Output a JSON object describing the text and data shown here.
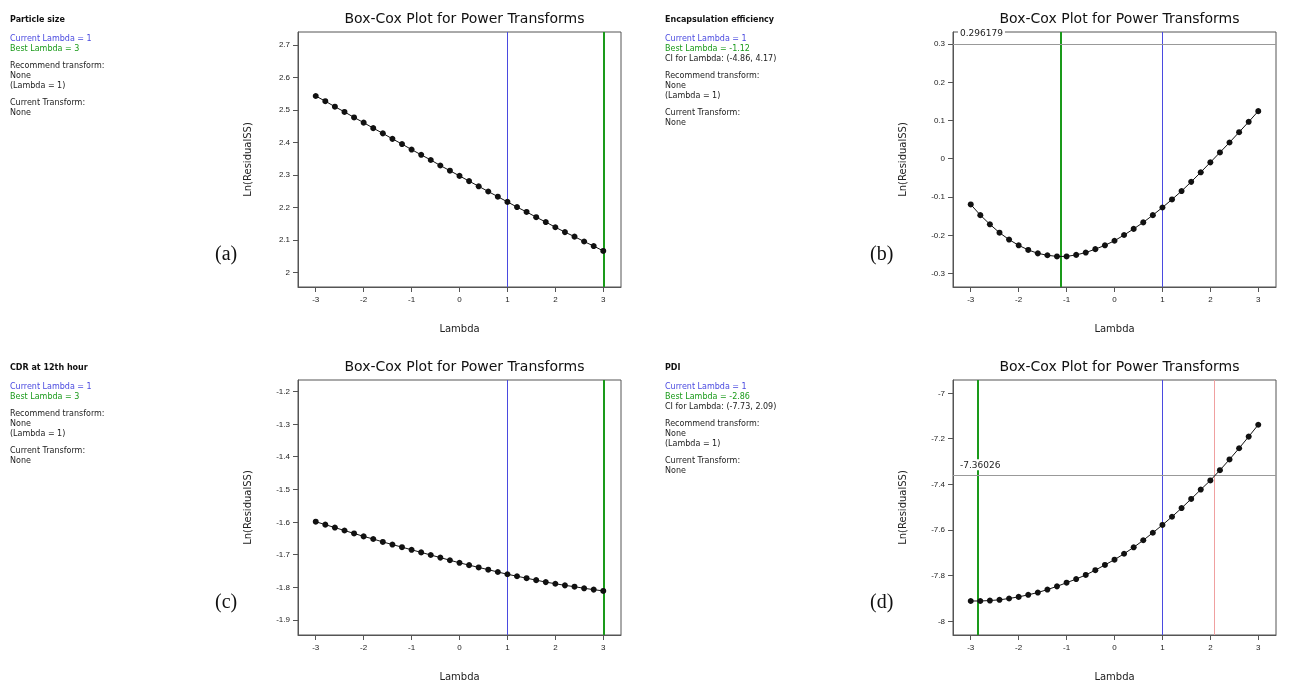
{
  "chart_data": [
    {
      "type": "line",
      "title": "Box-Cox Plot for Power Transforms",
      "xlabel": "Lambda",
      "ylabel": "Ln(ResidualSS)",
      "annotations": [
        "Particle size",
        "Current Lambda = 1",
        "Best Lambda = 3",
        "Recommend transform:\nNone\n(Lambda = 1)",
        "Current Transform:\nNone",
        "(a)"
      ],
      "x": [
        -3,
        -2.8,
        -2.6,
        -2.4,
        -2.2,
        -2,
        -1.8,
        -1.6,
        -1.4,
        -1.2,
        -1,
        -0.8,
        -0.6,
        -0.4,
        -0.2,
        0,
        0.2,
        0.4,
        0.6,
        0.8,
        1,
        1.2,
        1.4,
        1.6,
        1.8,
        2,
        2.2,
        2.4,
        2.6,
        2.8,
        3
      ],
      "series": [
        {
          "color": "#111111",
          "values": [
            2.543,
            2.527,
            2.51,
            2.494,
            2.477,
            2.461,
            2.444,
            2.428,
            2.411,
            2.395,
            2.378,
            2.362,
            2.346,
            2.329,
            2.313,
            2.297,
            2.281,
            2.265,
            2.249,
            2.233,
            2.217,
            2.201,
            2.186,
            2.17,
            2.155,
            2.139,
            2.124,
            2.11,
            2.095,
            2.081,
            2.066
          ]
        }
      ],
      "xlim": [
        -3.37,
        3.37
      ],
      "xticks": [
        -3,
        -2,
        -1,
        0,
        1,
        2,
        3
      ],
      "ylim": [
        1.955,
        2.74
      ],
      "yticks": [
        2,
        2.1,
        2.2,
        2.3,
        2.4,
        2.5,
        2.6,
        2.7
      ],
      "ref_lines": [
        {
          "axis": "x",
          "value": 1,
          "color": "#4a4ae0"
        },
        {
          "axis": "x",
          "value": 3,
          "color": "#1a9a1a"
        }
      ],
      "marker": "circle",
      "line_style": "solid",
      "grid": false
    },
    {
      "type": "line",
      "title": "Box-Cox Plot for Power Transforms",
      "xlabel": "Lambda",
      "ylabel": "Ln(ResidualSS)",
      "annotations": [
        "Encapsulation efficiency",
        "Current Lambda = 1",
        "Best Lambda = -1.12",
        "CI for Lambda: (-4.86, 4.17)",
        "Recommend transform:\nNone\n(Lambda = 1)",
        "Current Transform:\nNone",
        "(b)"
      ],
      "x": [
        -3,
        -2.8,
        -2.6,
        -2.4,
        -2.2,
        -2,
        -1.8,
        -1.6,
        -1.4,
        -1.2,
        -1,
        -0.8,
        -0.6,
        -0.4,
        -0.2,
        0,
        0.2,
        0.4,
        0.6,
        0.8,
        1,
        1.2,
        1.4,
        1.6,
        1.8,
        2,
        2.2,
        2.4,
        2.6,
        2.8,
        3
      ],
      "series": [
        {
          "color": "#111111",
          "values": [
            -0.12,
            -0.148,
            -0.172,
            -0.194,
            -0.212,
            -0.227,
            -0.239,
            -0.248,
            -0.253,
            -0.256,
            -0.256,
            -0.252,
            -0.246,
            -0.237,
            -0.227,
            -0.215,
            -0.2,
            -0.184,
            -0.167,
            -0.148,
            -0.128,
            -0.107,
            -0.085,
            -0.061,
            -0.036,
            -0.01,
            0.016,
            0.042,
            0.069,
            0.096,
            0.124
          ]
        }
      ],
      "xlim": [
        -3.37,
        3.37
      ],
      "xticks": [
        -3,
        -2,
        -1,
        0,
        1,
        2,
        3
      ],
      "ylim": [
        -0.336,
        0.331
      ],
      "yticks": [
        -0.3,
        -0.2,
        -0.1,
        0,
        0.1,
        0.2,
        0.3
      ],
      "ref_lines": [
        {
          "axis": "x",
          "value": 1,
          "color": "#4a4ae0"
        },
        {
          "axis": "x",
          "value": -1.12,
          "color": "#1a9a1a"
        },
        {
          "axis": "y",
          "value": 0.296179,
          "label": "0.296179",
          "color": "#999999"
        }
      ],
      "marker": "circle",
      "line_style": "solid",
      "grid": false
    },
    {
      "type": "line",
      "title": "Box-Cox Plot for Power Transforms",
      "xlabel": "Lambda",
      "ylabel": "Ln(ResidualSS)",
      "annotations": [
        "CDR at 12th hour",
        "Current Lambda = 1",
        "Best Lambda = 3",
        "Recommend transform:\nNone\n(Lambda = 1)",
        "Current Transform:\nNone",
        "(c)"
      ],
      "x": [
        -3,
        -2.8,
        -2.6,
        -2.4,
        -2.2,
        -2,
        -1.8,
        -1.6,
        -1.4,
        -1.2,
        -1,
        -0.8,
        -0.6,
        -0.4,
        -0.2,
        0,
        0.2,
        0.4,
        0.6,
        0.8,
        1,
        1.2,
        1.4,
        1.6,
        1.8,
        2,
        2.2,
        2.4,
        2.6,
        2.8,
        3
      ],
      "series": [
        {
          "color": "#111111",
          "values": [
            -1.599,
            -1.608,
            -1.617,
            -1.626,
            -1.635,
            -1.644,
            -1.652,
            -1.661,
            -1.669,
            -1.677,
            -1.685,
            -1.693,
            -1.701,
            -1.709,
            -1.717,
            -1.725,
            -1.732,
            -1.739,
            -1.746,
            -1.753,
            -1.76,
            -1.766,
            -1.772,
            -1.778,
            -1.784,
            -1.789,
            -1.794,
            -1.798,
            -1.803,
            -1.807,
            -1.811
          ]
        }
      ],
      "xlim": [
        -3.37,
        3.37
      ],
      "xticks": [
        -3,
        -2,
        -1,
        0,
        1,
        2,
        3
      ],
      "ylim": [
        -1.946,
        -1.165
      ],
      "yticks": [
        -1.9,
        -1.8,
        -1.7,
        -1.6,
        -1.5,
        -1.4,
        -1.3,
        -1.2
      ],
      "ref_lines": [
        {
          "axis": "x",
          "value": 1,
          "color": "#4a4ae0"
        },
        {
          "axis": "x",
          "value": 3,
          "color": "#1a9a1a"
        }
      ],
      "marker": "circle",
      "line_style": "solid",
      "grid": false
    },
    {
      "type": "line",
      "title": "Box-Cox Plot for Power Transforms",
      "xlabel": "Lambda",
      "ylabel": "Ln(ResidualSS)",
      "annotations": [
        "PDI",
        "Current Lambda = 1",
        "Best Lambda = -2.86",
        "CI for Lambda: (-7.73, 2.09)",
        "Recommend transform:\nNone\n(Lambda = 1)",
        "Current Transform:\nNone",
        "(d)"
      ],
      "x": [
        -3,
        -2.8,
        -2.6,
        -2.4,
        -2.2,
        -2,
        -1.8,
        -1.6,
        -1.4,
        -1.2,
        -1,
        -0.8,
        -0.6,
        -0.4,
        -0.2,
        0,
        0.2,
        0.4,
        0.6,
        0.8,
        1,
        1.2,
        1.4,
        1.6,
        1.8,
        2,
        2.2,
        2.4,
        2.6,
        2.8,
        3
      ],
      "series": [
        {
          "color": "#111111",
          "values": [
            -7.911,
            -7.911,
            -7.909,
            -7.906,
            -7.9,
            -7.893,
            -7.884,
            -7.874,
            -7.861,
            -7.847,
            -7.831,
            -7.815,
            -7.797,
            -7.776,
            -7.753,
            -7.73,
            -7.704,
            -7.676,
            -7.645,
            -7.612,
            -7.578,
            -7.542,
            -7.504,
            -7.464,
            -7.423,
            -7.383,
            -7.338,
            -7.291,
            -7.242,
            -7.191,
            -7.139
          ]
        }
      ],
      "xlim": [
        -3.37,
        3.37
      ],
      "xticks": [
        -3,
        -2,
        -1,
        0,
        1,
        2,
        3
      ],
      "ylim": [
        -8.06,
        -6.943
      ],
      "yticks": [
        -8,
        -7.8,
        -7.6,
        -7.4,
        -7.2,
        -7
      ],
      "ref_lines": [
        {
          "axis": "x",
          "value": 1,
          "color": "#4a4ae0"
        },
        {
          "axis": "x",
          "value": -2.86,
          "color": "#1a9a1a"
        },
        {
          "axis": "x",
          "value": 2.09,
          "color": "#f0a0a0"
        },
        {
          "axis": "y",
          "value": -7.36026,
          "label": "-7.36026",
          "color": "#999999"
        }
      ],
      "marker": "circle",
      "line_style": "solid",
      "grid": false
    }
  ]
}
